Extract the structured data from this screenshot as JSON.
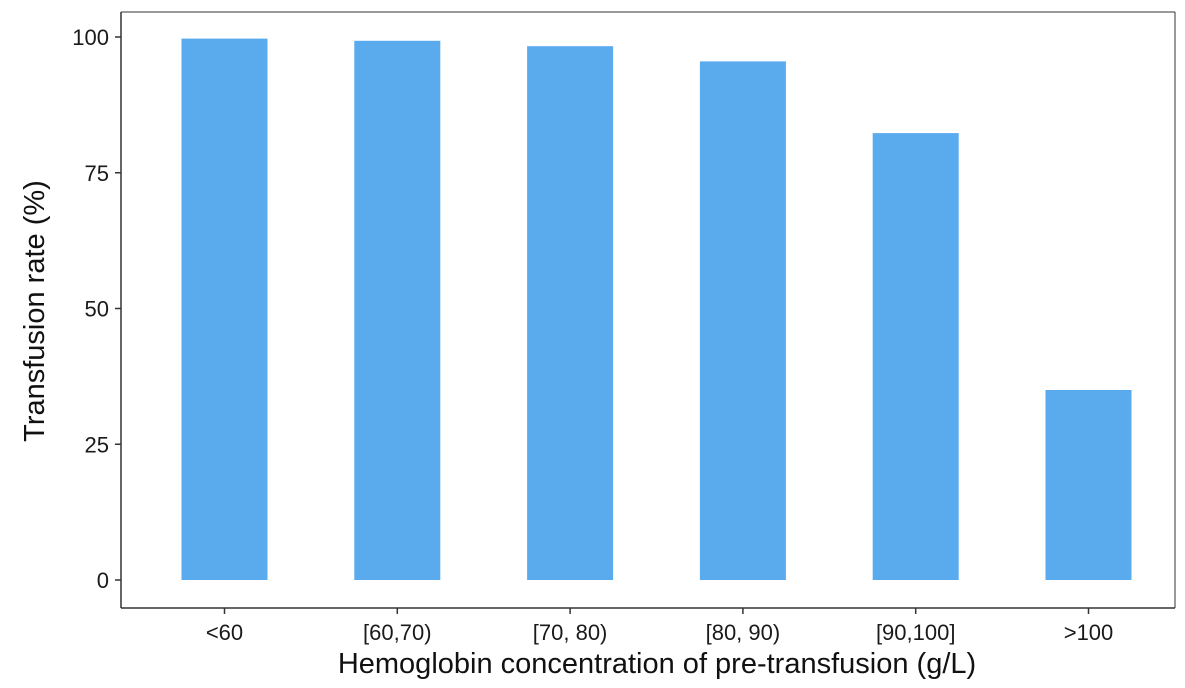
{
  "chart_data": {
    "type": "bar",
    "title": "",
    "xlabel": "Hemoglobin concentration of pre-transfusion (g/L)",
    "ylabel": "Transfusion rate (%)",
    "categories": [
      "<60",
      "[60,70)",
      "[70, 80)",
      "[80, 90)",
      "[90,100]",
      ">100"
    ],
    "values": [
      99.7,
      99.3,
      98.3,
      95.5,
      82.3,
      35.0
    ],
    "ylim": [
      0,
      104.5
    ],
    "yticks": [
      0,
      25,
      50,
      75,
      100
    ],
    "ytick_labels": [
      "0",
      "25",
      "50",
      "75",
      "100"
    ],
    "grid": false,
    "legend": "none",
    "colors": {
      "bar": "#5aaaee",
      "axis": "#333333",
      "text": "#1a1a1a"
    }
  }
}
